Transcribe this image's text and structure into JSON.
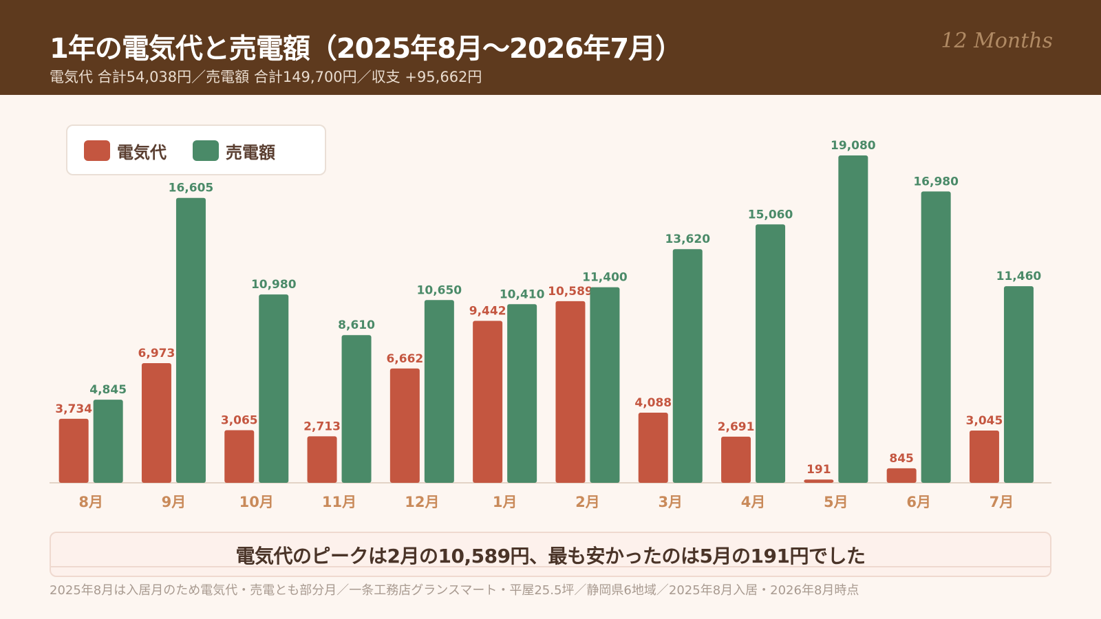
{
  "header": {
    "title": "1年の電気代と売電額（2025年8月〜2026年7月）",
    "subtitle": "電気代  合計54,038円／売電額  合計149,700円／収支  +95,662円",
    "tag": "12 Months"
  },
  "legend": {
    "items": [
      {
        "label": "電気代",
        "color": "#c45640"
      },
      {
        "label": "売電額",
        "color": "#4a8a68"
      }
    ]
  },
  "chart_data": {
    "type": "bar",
    "categories": [
      "8月",
      "9月",
      "10月",
      "11月",
      "12月",
      "1月",
      "2月",
      "3月",
      "4月",
      "5月",
      "6月",
      "7月"
    ],
    "series": [
      {
        "name": "電気代",
        "color": "#c45640",
        "values": [
          3734,
          6973,
          3065,
          2713,
          6662,
          9442,
          10589,
          4088,
          2691,
          191,
          845,
          3045
        ],
        "labels": [
          "3,734",
          "6,973",
          "3,065",
          "2,713",
          "6,662",
          "9,442",
          "10,589",
          "4,088",
          "2,691",
          "191",
          "845",
          "3,045"
        ]
      },
      {
        "name": "売電額",
        "color": "#4a8a68",
        "values": [
          4845,
          16605,
          10980,
          8610,
          10650,
          10410,
          11400,
          13620,
          15060,
          19080,
          16980,
          11460
        ],
        "labels": [
          "4,845",
          "16,605",
          "10,980",
          "8,610",
          "10,650",
          "10,410",
          "11,400",
          "13,620",
          "15,060",
          "19,080",
          "16,980",
          "11,460"
        ]
      }
    ],
    "ylim": [
      0,
      19080
    ],
    "legend_position": "top-left",
    "grid": false,
    "data_labels": true
  },
  "conclusion": "電気代のピークは2月の10,589円、最も安かったのは5月の191円でした",
  "footnote": "2025年8月は入居月のため電気代・売電とも部分月／一条工務店グランスマート・平屋25.5坪／静岡県6地域／2025年8月入居・2026年8月時点",
  "colors": {
    "header_bg": "#5e3a1e",
    "page_bg": "#fdf6f1",
    "axis_label": "#c98a5a"
  }
}
